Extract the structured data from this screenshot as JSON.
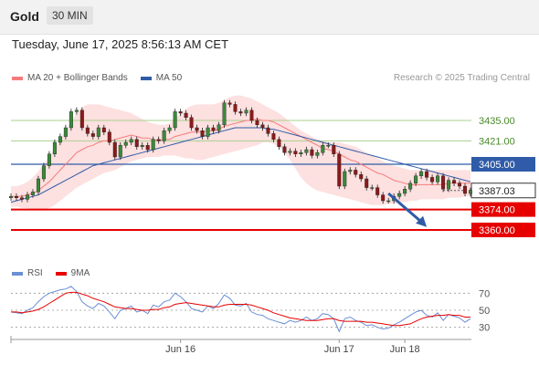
{
  "header": {
    "title": "Gold",
    "timeframe": "30 MIN",
    "datetime": "Tuesday, June 17, 2025 8:56:13 AM CET"
  },
  "legend": {
    "ma20_label": "MA 20 + Bollinger Bands",
    "ma50_label": "MA 50",
    "credit": "Research © 2025 Trading Central"
  },
  "rsi_legend": {
    "rsi_label": "RSI",
    "ma9_label": "9MA"
  },
  "colors": {
    "ma20": "#f47c7c",
    "ma50": "#2f5ba8",
    "bands": "#fde0e0",
    "green_level": "#a9d18e",
    "blue_level": "#2f5ba8",
    "red_level": "#e60000",
    "up_candle": "#3a8a3a",
    "down_candle": "#8b1a1a",
    "rsi": "#6b8fd4",
    "rsi_ma": "#e60000",
    "arrow": "#2f5ba8"
  },
  "chart_data": {
    "type": "candlestick",
    "instrument": "Gold",
    "timeframe": "30 MIN",
    "y_range": [
      3345,
      3455
    ],
    "x_tick_labels": [
      {
        "index": 31,
        "label": "Jun 16"
      },
      {
        "index": 60,
        "label": "Jun 17"
      },
      {
        "index": 72,
        "label": "Jun 18"
      }
    ],
    "levels": [
      {
        "value": 3435.0,
        "label": "3435.00",
        "kind": "resistance-green"
      },
      {
        "value": 3421.0,
        "label": "3421.00",
        "kind": "resistance-green"
      },
      {
        "value": 3405.0,
        "label": "3405.00",
        "kind": "pivot-blue"
      },
      {
        "value": 3374.0,
        "label": "3374.00",
        "kind": "support-red"
      },
      {
        "value": 3360.0,
        "label": "3360.00",
        "kind": "support-red"
      }
    ],
    "current_price": {
      "value": 3387.03,
      "label": "3387.03"
    },
    "forecast_arrow": {
      "from_index": 69,
      "from_value": 3385,
      "to_index": 76,
      "to_value": 3362
    },
    "close": [
      3383,
      3382,
      3381,
      3384,
      3386,
      3395,
      3404,
      3412,
      3420,
      3424,
      3430,
      3441,
      3442,
      3430,
      3426,
      3424,
      3430,
      3427,
      3420,
      3410,
      3418,
      3420,
      3422,
      3417,
      3418,
      3415,
      3422,
      3421,
      3428,
      3430,
      3441,
      3440,
      3437,
      3430,
      3428,
      3424,
      3430,
      3428,
      3432,
      3447,
      3446,
      3441,
      3440,
      3442,
      3435,
      3432,
      3430,
      3426,
      3422,
      3417,
      3413,
      3414,
      3412,
      3413,
      3415,
      3411,
      3413,
      3418,
      3418,
      3412,
      3390,
      3400,
      3401,
      3398,
      3395,
      3389,
      3389,
      3384,
      3380,
      3380,
      3383,
      3385,
      3388,
      3392,
      3397,
      3400,
      3396,
      3393,
      3397,
      3388,
      3394,
      3392,
      3390,
      3385,
      3387
    ],
    "open": [
      3382,
      3383,
      3382,
      3381,
      3384,
      3386,
      3395,
      3404,
      3412,
      3420,
      3424,
      3430,
      3441,
      3442,
      3430,
      3426,
      3424,
      3430,
      3427,
      3420,
      3410,
      3418,
      3420,
      3422,
      3417,
      3418,
      3415,
      3422,
      3421,
      3428,
      3430,
      3441,
      3440,
      3437,
      3430,
      3428,
      3424,
      3430,
      3428,
      3432,
      3447,
      3446,
      3441,
      3440,
      3442,
      3435,
      3432,
      3430,
      3426,
      3422,
      3417,
      3413,
      3414,
      3412,
      3413,
      3415,
      3411,
      3413,
      3418,
      3418,
      3412,
      3390,
      3400,
      3401,
      3398,
      3395,
      3389,
      3389,
      3384,
      3380,
      3380,
      3383,
      3385,
      3388,
      3392,
      3397,
      3400,
      3396,
      3393,
      3397,
      3388,
      3394,
      3392,
      3390,
      3385
    ],
    "ma20": [
      3383,
      3383,
      3383,
      3384,
      3385,
      3387,
      3390,
      3393,
      3397,
      3401,
      3405,
      3409,
      3413,
      3415,
      3417,
      3418,
      3420,
      3421,
      3421,
      3422,
      3423,
      3424,
      3425,
      3424,
      3423,
      3423,
      3422,
      3421,
      3422,
      3422,
      3424,
      3425,
      3426,
      3427,
      3427,
      3427,
      3428,
      3428,
      3429,
      3431,
      3432,
      3433,
      3434,
      3435,
      3435,
      3436,
      3435,
      3435,
      3434,
      3432,
      3430,
      3428,
      3426,
      3424,
      3422,
      3420,
      3418,
      3416,
      3415,
      3414,
      3412,
      3410,
      3408,
      3407,
      3405,
      3403,
      3401,
      3399,
      3398,
      3396,
      3394,
      3393,
      3392,
      3391,
      3391,
      3391,
      3391,
      3391,
      3391,
      3391,
      3392,
      3392,
      3392,
      3392,
      3392
    ],
    "ma50": [
      3379,
      3380,
      3381,
      3382,
      3383,
      3384,
      3386,
      3388,
      3390,
      3392,
      3394,
      3396,
      3398,
      3400,
      3402,
      3404,
      3405,
      3406,
      3407,
      3408,
      3409,
      3410,
      3411,
      3412,
      3413,
      3414,
      3415,
      3416,
      3417,
      3418,
      3419,
      3420,
      3421,
      3422,
      3423,
      3424,
      3425,
      3426,
      3427,
      3428,
      3429,
      3430,
      3430,
      3430,
      3430,
      3430,
      3430,
      3429,
      3429,
      3428,
      3427,
      3426,
      3425,
      3424,
      3423,
      3422,
      3421,
      3420,
      3419,
      3418,
      3417,
      3416,
      3415,
      3414,
      3413,
      3412,
      3411,
      3410,
      3409,
      3408,
      3407,
      3406,
      3405,
      3404,
      3403,
      3402,
      3401,
      3400,
      3399,
      3398,
      3397,
      3396,
      3395,
      3394,
      3393
    ],
    "bollinger_upper": [
      3390,
      3390,
      3391,
      3393,
      3396,
      3400,
      3405,
      3410,
      3416,
      3422,
      3428,
      3434,
      3440,
      3444,
      3446,
      3446,
      3446,
      3445,
      3444,
      3443,
      3442,
      3441,
      3440,
      3438,
      3436,
      3434,
      3433,
      3432,
      3432,
      3433,
      3436,
      3440,
      3443,
      3445,
      3446,
      3446,
      3446,
      3446,
      3447,
      3449,
      3451,
      3452,
      3452,
      3451,
      3450,
      3448,
      3446,
      3444,
      3442,
      3440,
      3437,
      3434,
      3431,
      3428,
      3426,
      3424,
      3422,
      3421,
      3420,
      3420,
      3420,
      3419,
      3418,
      3417,
      3415,
      3413,
      3411,
      3409,
      3407,
      3405,
      3404,
      3403,
      3402,
      3401,
      3401,
      3401,
      3401,
      3401,
      3401,
      3401,
      3401,
      3401,
      3401,
      3401,
      3401
    ],
    "bollinger_lower": [
      3376,
      3376,
      3375,
      3375,
      3374,
      3374,
      3374,
      3375,
      3377,
      3380,
      3383,
      3386,
      3389,
      3391,
      3393,
      3395,
      3397,
      3399,
      3400,
      3401,
      3403,
      3405,
      3407,
      3408,
      3409,
      3410,
      3410,
      3410,
      3411,
      3411,
      3411,
      3410,
      3409,
      3409,
      3408,
      3408,
      3409,
      3410,
      3411,
      3412,
      3413,
      3414,
      3415,
      3416,
      3417,
      3418,
      3420,
      3420,
      3419,
      3417,
      3413,
      3408,
      3402,
      3396,
      3392,
      3389,
      3387,
      3386,
      3385,
      3384,
      3383,
      3382,
      3381,
      3380,
      3379,
      3378,
      3377,
      3377,
      3377,
      3378,
      3378,
      3379,
      3379,
      3380,
      3380,
      3381,
      3381,
      3381,
      3381,
      3381,
      3382,
      3382,
      3382,
      3383,
      3383
    ],
    "rsi": {
      "y_range": [
        20,
        80
      ],
      "levels": [
        70,
        50,
        30
      ],
      "rsi_values": [
        48,
        47,
        46,
        50,
        53,
        60,
        66,
        70,
        72,
        74,
        75,
        78,
        72,
        60,
        55,
        52,
        58,
        55,
        48,
        40,
        50,
        52,
        55,
        48,
        50,
        46,
        56,
        54,
        60,
        62,
        70,
        66,
        60,
        52,
        50,
        48,
        55,
        52,
        58,
        68,
        64,
        56,
        55,
        58,
        48,
        45,
        44,
        40,
        38,
        36,
        34,
        38,
        36,
        38,
        42,
        38,
        40,
        46,
        45,
        40,
        25,
        40,
        42,
        38,
        36,
        32,
        33,
        30,
        28,
        29,
        33,
        36,
        40,
        44,
        48,
        50,
        44,
        42,
        47,
        38,
        45,
        43,
        41,
        36,
        40
      ],
      "ma9_values": [
        48,
        48,
        47,
        48,
        49,
        51,
        54,
        58,
        62,
        66,
        70,
        71,
        71,
        69,
        67,
        64,
        62,
        60,
        57,
        54,
        53,
        52,
        52,
        51,
        50,
        50,
        51,
        51,
        53,
        54,
        57,
        58,
        59,
        58,
        57,
        56,
        55,
        54,
        54,
        56,
        57,
        57,
        57,
        57,
        56,
        54,
        52,
        50,
        47,
        45,
        43,
        41,
        40,
        39,
        38,
        38,
        38,
        39,
        40,
        40,
        38,
        37,
        37,
        37,
        37,
        36,
        36,
        35,
        34,
        33,
        32,
        32,
        33,
        34,
        37,
        40,
        42,
        43,
        44,
        44,
        45,
        44,
        44,
        42,
        42
      ]
    }
  }
}
